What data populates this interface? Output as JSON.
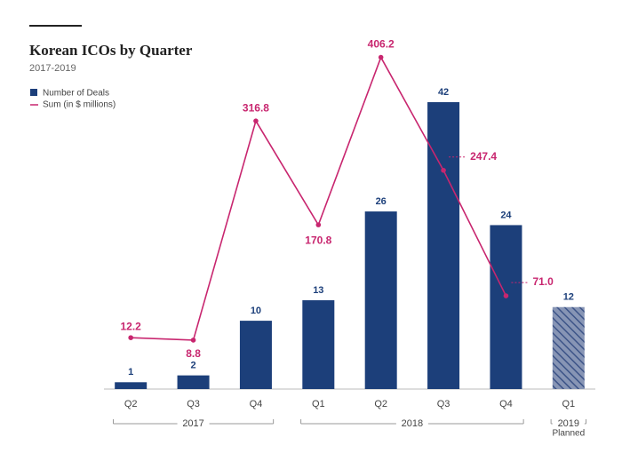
{
  "chart_data": {
    "type": "bar_line",
    "title": "Korean ICOs by Quarter",
    "subtitle": "2017-2019",
    "categories": [
      "Q2",
      "Q3",
      "Q4",
      "Q1",
      "Q2",
      "Q3",
      "Q4",
      "Q1"
    ],
    "groups": [
      {
        "label": "2017",
        "start": 0,
        "end": 2
      },
      {
        "label": "2018",
        "start": 3,
        "end": 6
      },
      {
        "label": "2019",
        "start": 7,
        "end": 7,
        "note": "Planned"
      }
    ],
    "series": [
      {
        "name": "Number of Deals",
        "type": "bar",
        "color": "#1c3f7a",
        "hatched": [
          7
        ],
        "values": [
          1,
          2,
          10,
          13,
          26,
          42,
          24,
          12
        ]
      },
      {
        "name": "Sum (in $ millions)",
        "type": "line",
        "axis": "y2",
        "color": "#c8266f",
        "values": [
          12.2,
          8.8,
          316.8,
          170.8,
          406.2,
          247.4,
          71.0,
          null
        ],
        "value_labels": [
          "12.2",
          "8.8",
          "316.8",
          "170.8",
          "406.2",
          "247.4",
          "71.0",
          null
        ]
      }
    ],
    "ylim": [
      0,
      50
    ],
    "y2lim": [
      -60,
      420
    ],
    "legend": "top-left"
  }
}
